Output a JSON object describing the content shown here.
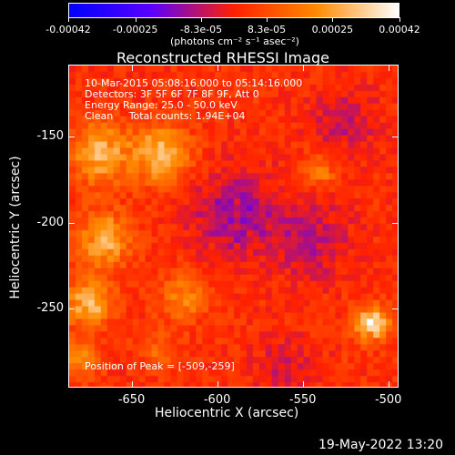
{
  "colorbar": {
    "ticks": [
      "-0.00042",
      "-0.00025",
      "-8.3e-05",
      "8.3e-05",
      "0.00025",
      "0.00042"
    ],
    "tick_values": [
      -0.00042,
      -0.00025,
      -8.3e-05,
      8.3e-05,
      0.00025,
      0.00042
    ],
    "units": "(photons cm⁻² s⁻¹ asec⁻²)",
    "colors": [
      "#0000ff",
      "#5a00ff",
      "#ff2000",
      "#ff8a00",
      "#ffffff"
    ]
  },
  "info": {
    "time": "10-Mar-2015 05:08:16.000 to 05:14:16.000",
    "detectors": "Detectors: 3F 5F 6F 7F 8F 9F, Att 0",
    "energy": "Energy Range: 25.0 - 50.0 keV",
    "clean": "Clean     Total counts: 1.94E+04",
    "peak": "Position of Peak = [-509,-259]"
  },
  "footer": {
    "date": "19-May-2022 13:20"
  },
  "chart_data": {
    "type": "heatmap",
    "title": "Reconstructed RHESSI Image",
    "xlabel": "Heliocentric X (arcsec)",
    "ylabel": "Heliocentric Y (arcsec)",
    "xlim": [
      -687,
      -494
    ],
    "ylim": [
      -296,
      -108
    ],
    "xticks": [
      -650,
      -600,
      -550,
      -500
    ],
    "xtick_labels": [
      "-650",
      "-600",
      "-550",
      "-500"
    ],
    "yticks": [
      -150,
      -200,
      -250
    ],
    "ytick_labels": [
      "-150",
      "-200",
      "-250"
    ],
    "color_range": [
      -0.00042,
      0.00042
    ],
    "peak": [
      -509,
      -259
    ],
    "bright_regions": [
      {
        "x": -668,
        "y": -160,
        "amp": 0.00032,
        "sigma": 12
      },
      {
        "x": -632,
        "y": -160,
        "amp": 0.00036,
        "sigma": 11
      },
      {
        "x": -667,
        "y": -210,
        "amp": 0.0003,
        "sigma": 11
      },
      {
        "x": -676,
        "y": -247,
        "amp": 0.00031,
        "sigma": 10
      },
      {
        "x": -620,
        "y": -243,
        "amp": 0.0002,
        "sigma": 10
      },
      {
        "x": -509,
        "y": -259,
        "amp": 0.00042,
        "sigma": 7
      },
      {
        "x": -540,
        "y": -170,
        "amp": 0.00018,
        "sigma": 7
      },
      {
        "x": -682,
        "y": -280,
        "amp": 0.00022,
        "sigma": 8
      },
      {
        "x": -635,
        "y": -275,
        "amp": 0.00012,
        "sigma": 8
      }
    ],
    "dark_regions": [
      {
        "x": -590,
        "y": -195,
        "amp": -0.00018,
        "sigma": 18
      },
      {
        "x": -545,
        "y": -210,
        "amp": -0.00014,
        "sigma": 16
      },
      {
        "x": -525,
        "y": -140,
        "amp": -0.00012,
        "sigma": 14
      },
      {
        "x": -560,
        "y": -285,
        "amp": -0.00011,
        "sigma": 12
      }
    ]
  }
}
